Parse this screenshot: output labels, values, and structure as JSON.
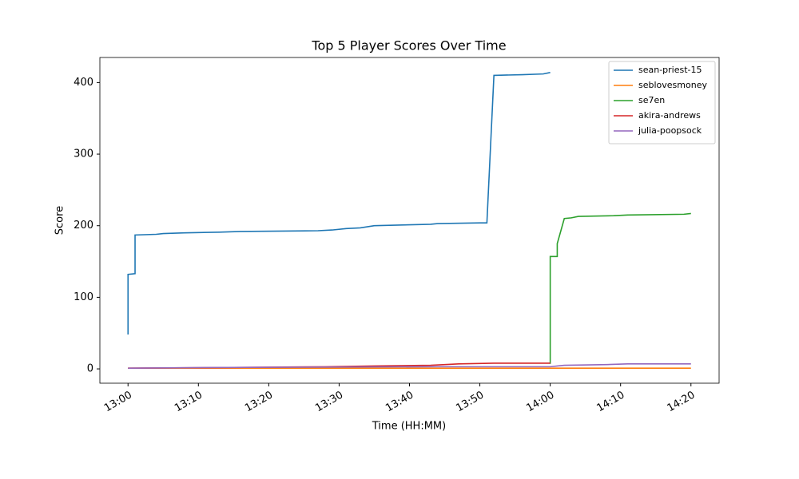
{
  "chart_data": {
    "type": "line",
    "title": "Top 5 Player Scores Over Time",
    "x_label": "Time (HH:MM)",
    "y_label": "Score",
    "xlim": [
      "12:56",
      "14:24"
    ],
    "xticks": [
      "13:00",
      "13:10",
      "13:20",
      "13:30",
      "13:40",
      "13:50",
      "14:00",
      "14:10",
      "14:20"
    ],
    "ylim": [
      -20,
      435
    ],
    "yticks": [
      0,
      100,
      200,
      300,
      400
    ],
    "legend": "upper right",
    "grid": false,
    "series": [
      {
        "name": "sean-priest-15",
        "color": "#1f77b4",
        "x": [
          "13:00",
          "13:00",
          "13:01",
          "13:01",
          "13:04",
          "13:05",
          "13:08",
          "13:13",
          "13:16",
          "13:27",
          "13:29",
          "13:31",
          "13:33",
          "13:35",
          "13:39",
          "13:43",
          "13:44",
          "13:50",
          "13:51",
          "13:52",
          "13:56",
          "13:59",
          "14:00"
        ],
        "values": [
          48,
          132,
          133,
          187,
          188,
          189,
          190,
          191,
          192,
          193,
          194,
          196,
          197,
          200,
          201,
          202,
          203,
          204,
          204,
          410,
          411,
          412,
          414
        ]
      },
      {
        "name": "seblovesmoney",
        "color": "#ff7f0e",
        "x": [
          "13:00",
          "14:20"
        ],
        "values": [
          1,
          1
        ]
      },
      {
        "name": "se7en",
        "color": "#2ca02c",
        "x": [
          "14:00",
          "14:00",
          "14:01",
          "14:01",
          "14:02",
          "14:03",
          "14:04",
          "14:09",
          "14:11",
          "14:19",
          "14:20"
        ],
        "values": [
          7,
          157,
          157,
          175,
          210,
          211,
          213,
          214,
          215,
          216,
          217
        ]
      },
      {
        "name": "akira-andrews",
        "color": "#d62728",
        "x": [
          "13:00",
          "13:15",
          "13:28",
          "13:35",
          "13:43",
          "13:47",
          "13:52",
          "14:00"
        ],
        "values": [
          1,
          2,
          3,
          4,
          5,
          7,
          8,
          8
        ]
      },
      {
        "name": "julia-poopsock",
        "color": "#9467bd",
        "x": [
          "13:00",
          "13:14",
          "13:44",
          "14:00",
          "14:01",
          "14:02",
          "14:08",
          "14:11",
          "14:20"
        ],
        "values": [
          1,
          2,
          3,
          3,
          4,
          5,
          6,
          7,
          7
        ]
      }
    ]
  }
}
